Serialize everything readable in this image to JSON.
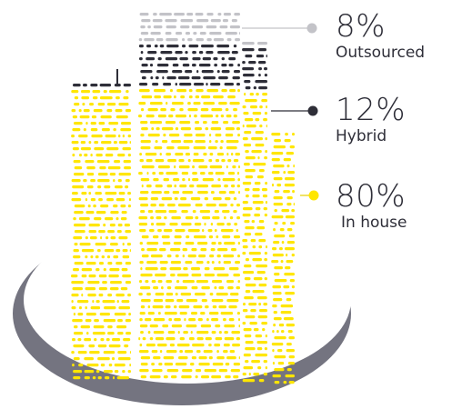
{
  "chart_data": {
    "type": "pie",
    "categories": [
      "Outsourced",
      "Hybrid",
      "In house"
    ],
    "values": [
      8,
      12,
      80
    ],
    "value_labels": [
      "8%",
      "12%",
      "80%"
    ],
    "colors": [
      "#c3c3c8",
      "#2e2e38",
      "#ffe600"
    ],
    "legend_position": "right",
    "title": "",
    "xlabel": "",
    "ylabel": ""
  },
  "colors": {
    "text": "#2e2e38",
    "base_ring": "#747480"
  }
}
